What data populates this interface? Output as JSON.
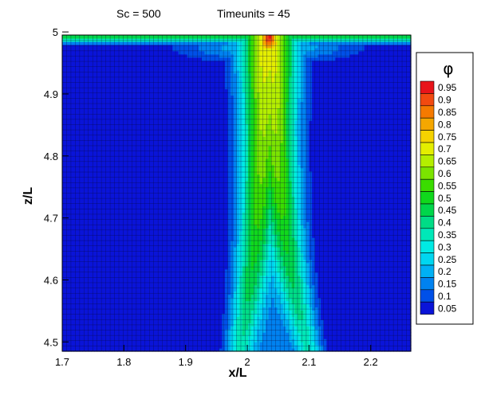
{
  "header": {
    "sc_text": "Sc = 500",
    "time_text": "Timeunits = 45"
  },
  "chart_data": {
    "type": "heatmap",
    "title": "",
    "xlabel": "x/L",
    "ylabel": "z/L",
    "xlim": [
      1.7,
      2.265
    ],
    "ylim": [
      4.485,
      4.995
    ],
    "x_ticks": [
      "1.7",
      "1.8",
      "1.9",
      "2",
      "2.1",
      "2.2"
    ],
    "x_tick_values": [
      1.7,
      1.8,
      1.9,
      2.0,
      2.1,
      2.2
    ],
    "y_ticks": [
      "4.5",
      "4.6",
      "4.7",
      "4.8",
      "4.9",
      "5"
    ],
    "y_tick_values": [
      4.5,
      4.6,
      4.7,
      4.8,
      4.9,
      5.0
    ],
    "grid": true,
    "legend": {
      "title": "φ",
      "placement": "right",
      "levels": [
        "0.95",
        "0.9",
        "0.85",
        "0.8",
        "0.75",
        "0.7",
        "0.65",
        "0.6",
        "0.55",
        "0.5",
        "0.45",
        "0.4",
        "0.35",
        "0.3",
        "0.25",
        "0.2",
        "0.15",
        "0.1",
        "0.05"
      ],
      "colors": [
        "#e8141a",
        "#f24a10",
        "#f57a00",
        "#f5a700",
        "#f5d200",
        "#e4ee00",
        "#b4ee00",
        "#7be400",
        "#3adc00",
        "#10d81c",
        "#00d64a",
        "#00dc86",
        "#00e8b8",
        "#00eae4",
        "#00d6f0",
        "#00b0f4",
        "#0082f0",
        "#0050e8",
        "#0a14d8"
      ]
    },
    "plume": {
      "background_value": 0.05,
      "cap_value": 0.97,
      "x_center": 2.035
    }
  }
}
